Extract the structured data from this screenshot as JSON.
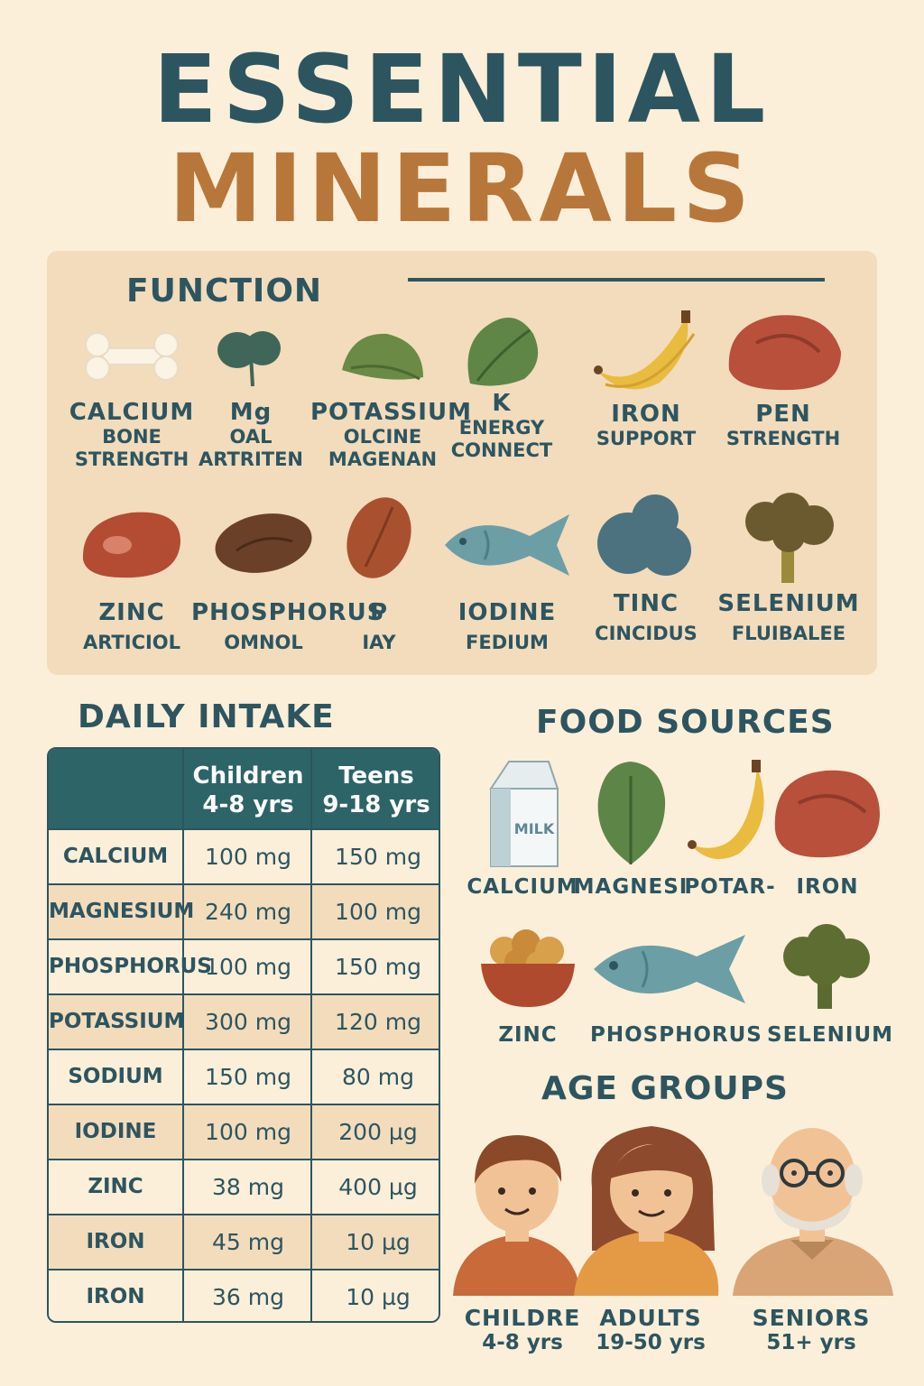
{
  "title": {
    "line1": "ESSENTIAL",
    "line2": "MINERALS"
  },
  "function_section": {
    "heading": "FUNCTION",
    "items": [
      {
        "name": "CALCIUM",
        "desc1": "BONE",
        "desc2": "STRENGTH",
        "icon": "bone-icon"
      },
      {
        "name": "Mg",
        "desc1": "OAL",
        "desc2": "ARTRITEN",
        "icon": "leaf-icon"
      },
      {
        "name": "POTASSIUM",
        "desc1": "OLCINE",
        "desc2": "MAGENAN",
        "icon": "spinach-icon"
      },
      {
        "name": "K",
        "desc1": "ENERGY",
        "desc2": "CONNECT",
        "icon": "greens-icon"
      },
      {
        "name": "IRON",
        "desc1": "SUPPORT",
        "desc2": "",
        "icon": "banana-icon"
      },
      {
        "name": "PEN",
        "desc1": "STRENGTH",
        "desc2": "",
        "icon": "meat-icon"
      },
      {
        "name": "ZINC",
        "desc1": "ARTICIOL",
        "desc2": "",
        "icon": "steak-icon"
      },
      {
        "name": "PHOSPHORUS",
        "desc1": "OMNOL",
        "desc2": "",
        "icon": "nut-icon"
      },
      {
        "name": "P",
        "desc1": "IAY",
        "desc2": "",
        "icon": "almond-icon"
      },
      {
        "name": "IODINE",
        "desc1": "FEDIUM",
        "desc2": "",
        "icon": "fish-icon"
      },
      {
        "name": "TINC",
        "desc1": "CINCIDUS",
        "desc2": "",
        "icon": "seaweed-icon"
      },
      {
        "name": "SELENIUM",
        "desc1": "FLUIBALEE",
        "desc2": "",
        "icon": "broccoli-icon"
      }
    ]
  },
  "daily_intake": {
    "heading": "DAILY INTAKE",
    "columns": [
      {
        "line1": "Children",
        "line2": "4-8 yrs"
      },
      {
        "line1": "Teens",
        "line2": "9-18 yrs"
      }
    ],
    "rows": [
      {
        "mineral": "CALCIUM",
        "children": "100 mg",
        "teens": "150 mg"
      },
      {
        "mineral": "MAGNESIUM",
        "children": "240 mg",
        "teens": "100 mg"
      },
      {
        "mineral": "PHOSPHORUS",
        "children": "100 mg",
        "teens": "150 mg"
      },
      {
        "mineral": "POTASSIUM",
        "children": "300 mg",
        "teens": "120 mg"
      },
      {
        "mineral": "SODIUM",
        "children": "150 mg",
        "teens": "80 mg"
      },
      {
        "mineral": "IODINE",
        "children": "100 mg",
        "teens": "200 µg"
      },
      {
        "mineral": "ZINC",
        "children": "38 mg",
        "teens": "400 µg"
      },
      {
        "mineral": "IRON",
        "children": "45 mg",
        "teens": "10 µg"
      },
      {
        "mineral": "IRON",
        "children": "36 mg",
        "teens": "10 µg"
      }
    ]
  },
  "food_sources": {
    "heading": "FOOD SOURCES",
    "milk_label": "MILK",
    "items": [
      {
        "label": "CALCIUM",
        "icon": "milk-carton-icon"
      },
      {
        "label": "MAGNESI",
        "icon": "spinach-icon"
      },
      {
        "label": "POTAR-",
        "icon": "banana-icon"
      },
      {
        "label": "IRON",
        "icon": "meat-icon"
      },
      {
        "label": "ZINC",
        "icon": "nuts-bowl-icon"
      },
      {
        "label": "PHOSPHORUS",
        "icon": "fish-icon"
      },
      {
        "label": "SELENIUM",
        "icon": "broccoli-icon"
      }
    ]
  },
  "age_groups": {
    "heading": "AGE GROUPS",
    "groups": [
      {
        "name": "CHILDRE",
        "range": "4-8 yrs"
      },
      {
        "name": "ADULTS",
        "range": "19-50 yrs"
      },
      {
        "name": "SENIORS",
        "range": "51+ yrs"
      }
    ]
  }
}
